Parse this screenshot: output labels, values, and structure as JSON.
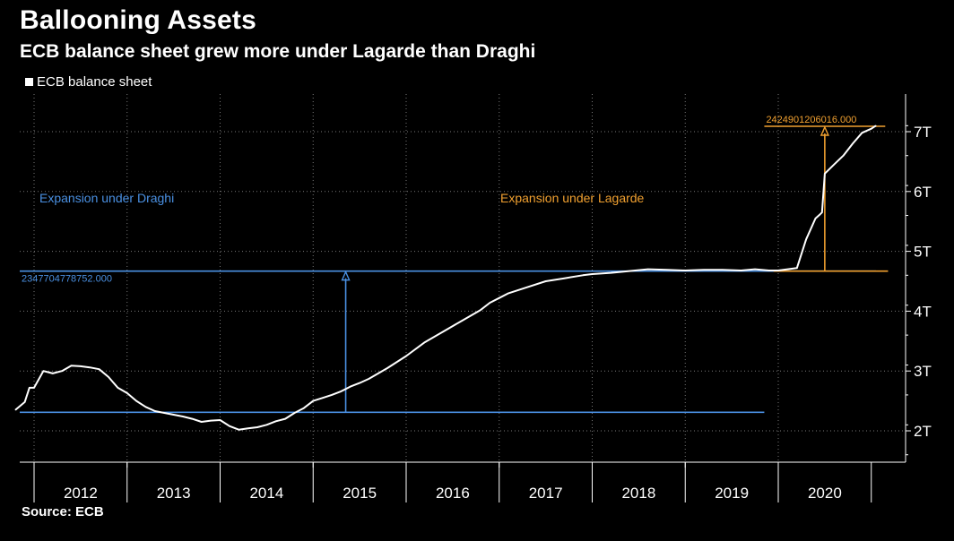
{
  "header": {
    "title": "Ballooning Assets",
    "subtitle": "ECB balance sheet grew more under Lagarde than Draghi",
    "source": "Source: ECB"
  },
  "chart_data": {
    "type": "line",
    "title": "Ballooning Assets",
    "subtitle": "ECB balance sheet grew more under Lagarde than Draghi",
    "xlabel": "",
    "ylabel": "",
    "ylim": [
      1.5,
      7.6
    ],
    "xlim": [
      2011.8,
      2021.1
    ],
    "grid": true,
    "legend_position": "top-left",
    "y_ticks": [
      {
        "value": 2,
        "label": "2T"
      },
      {
        "value": 3,
        "label": "3T"
      },
      {
        "value": 4,
        "label": "4T"
      },
      {
        "value": 5,
        "label": "5T"
      },
      {
        "value": 6,
        "label": "6T"
      },
      {
        "value": 7,
        "label": "7T"
      }
    ],
    "x_ticks": [
      "2012",
      "2013",
      "2014",
      "2015",
      "2016",
      "2017",
      "2018",
      "2019",
      "2020"
    ],
    "series": [
      {
        "name": "ECB balance sheet",
        "color": "#ffffff",
        "unit": "trillion EUR",
        "x": [
          2011.8,
          2011.9,
          2011.95,
          2012.0,
          2012.1,
          2012.15,
          2012.2,
          2012.3,
          2012.4,
          2012.5,
          2012.6,
          2012.7,
          2012.8,
          2012.9,
          2013.0,
          2013.1,
          2013.2,
          2013.3,
          2013.4,
          2013.5,
          2013.6,
          2013.7,
          2013.8,
          2013.9,
          2014.0,
          2014.1,
          2014.2,
          2014.3,
          2014.4,
          2014.5,
          2014.6,
          2014.7,
          2014.8,
          2014.9,
          2015.0,
          2015.1,
          2015.2,
          2015.3,
          2015.4,
          2015.5,
          2015.6,
          2015.8,
          2016.0,
          2016.2,
          2016.4,
          2016.6,
          2016.8,
          2016.9,
          2017.0,
          2017.1,
          2017.3,
          2017.5,
          2017.7,
          2017.9,
          2018.0,
          2018.2,
          2018.4,
          2018.6,
          2018.8,
          2019.0,
          2019.2,
          2019.4,
          2019.6,
          2019.75,
          2019.9,
          2020.0,
          2020.1,
          2020.2,
          2020.3,
          2020.4,
          2020.45,
          2020.47,
          2020.5,
          2020.6,
          2020.7,
          2020.8,
          2020.9,
          2021.0,
          2021.05
        ],
        "values": [
          2.35,
          2.48,
          2.72,
          2.72,
          3.0,
          2.98,
          2.96,
          3.0,
          3.09,
          3.08,
          3.06,
          3.03,
          2.9,
          2.72,
          2.63,
          2.5,
          2.4,
          2.33,
          2.3,
          2.27,
          2.24,
          2.2,
          2.15,
          2.17,
          2.18,
          2.08,
          2.02,
          2.04,
          2.06,
          2.1,
          2.16,
          2.2,
          2.3,
          2.38,
          2.5,
          2.55,
          2.6,
          2.66,
          2.74,
          2.8,
          2.87,
          3.05,
          3.25,
          3.48,
          3.66,
          3.84,
          4.02,
          4.14,
          4.22,
          4.3,
          4.4,
          4.5,
          4.55,
          4.6,
          4.62,
          4.64,
          4.67,
          4.7,
          4.69,
          4.68,
          4.69,
          4.69,
          4.68,
          4.7,
          4.68,
          4.68,
          4.7,
          4.72,
          5.2,
          5.55,
          5.62,
          5.65,
          6.3,
          6.45,
          6.6,
          6.8,
          6.98,
          7.05,
          7.1
        ]
      }
    ],
    "annotations": [
      {
        "label": "Expansion under Draghi",
        "color": "#4a90e2",
        "baseline": 2.31,
        "top": 4.67,
        "value_label": "2347704778752.000",
        "arrow_x": 2015.35
      },
      {
        "label": "Expansion under Lagarde",
        "color": "#f0a030",
        "baseline": 4.67,
        "top": 7.09,
        "value_label": "2424901206016.000",
        "arrow_x": 2020.5
      }
    ]
  }
}
